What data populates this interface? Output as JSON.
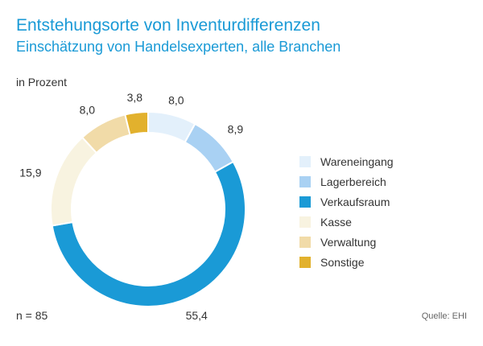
{
  "header": {
    "title": "Entstehungsorte von Inventurdifferenzen",
    "subtitle": "Einschätzung von Handelsexperten, alle Branchen"
  },
  "unit_label": "in Prozent",
  "footnote": "n = 85",
  "source": "Quelle: EHI",
  "chart_data": {
    "type": "pie",
    "title": "Entstehungsorte von Inventurdifferenzen",
    "subtitle": "Einschätzung von Handelsexperten, alle Branchen",
    "unit": "in Prozent",
    "donut": true,
    "legend_position": "right",
    "categories": [
      "Wareneingang",
      "Lagerbereich",
      "Verkaufsraum",
      "Kasse",
      "Verwaltung",
      "Sonstige"
    ],
    "values": [
      8.0,
      8.9,
      55.4,
      15.9,
      8.0,
      3.8
    ],
    "value_labels": [
      "8,0",
      "8,9",
      "55,4",
      "15,9",
      "8,0",
      "3,8"
    ],
    "colors": [
      "#e3f0fb",
      "#a9d1f3",
      "#1a9ad6",
      "#f8f3e0",
      "#f1dba8",
      "#e2b12d"
    ]
  }
}
